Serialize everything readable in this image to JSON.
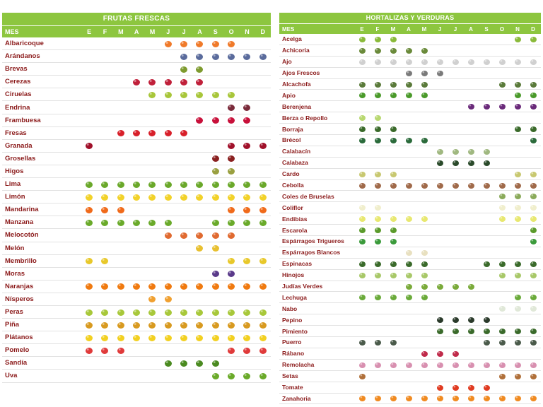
{
  "months": [
    "E",
    "F",
    "M",
    "A",
    "M",
    "J",
    "J",
    "A",
    "S",
    "O",
    "N",
    "D"
  ],
  "frutas": {
    "title": "FRUTAS FRESCAS",
    "mes_label": "MES",
    "items": [
      {
        "name": "Albaricoque",
        "icon": "apricot",
        "color": "#f07a2a",
        "months": [
          5,
          6,
          7,
          8,
          9
        ]
      },
      {
        "name": "Arándanos",
        "icon": "blueberry",
        "color": "#5a6b9c",
        "months": [
          6,
          7,
          8,
          9,
          10,
          11
        ]
      },
      {
        "name": "Brevas",
        "icon": "fig",
        "color": "#7e9b2e",
        "months": [
          6,
          7
        ]
      },
      {
        "name": "Cerezas",
        "icon": "cherry",
        "color": "#c0203a",
        "months": [
          3,
          4,
          5,
          6,
          7
        ]
      },
      {
        "name": "Ciruelas",
        "icon": "plum",
        "color": "#a8c63a",
        "months": [
          4,
          5,
          6,
          7,
          8,
          9
        ]
      },
      {
        "name": "Endrina",
        "icon": "sloe",
        "color": "#7a2a3a",
        "months": [
          9,
          10
        ]
      },
      {
        "name": "Frambuesa",
        "icon": "raspberry",
        "color": "#c8103a",
        "months": [
          7,
          8,
          9,
          10
        ]
      },
      {
        "name": "Fresas",
        "icon": "strawberry",
        "color": "#d8202a",
        "months": [
          2,
          3,
          4,
          5,
          6
        ]
      },
      {
        "name": "Granada",
        "icon": "pomegranate",
        "color": "#a0102a",
        "months": [
          0,
          9,
          10,
          11
        ]
      },
      {
        "name": "Grosellas",
        "icon": "currant",
        "color": "#8a2020",
        "months": [
          8,
          9
        ]
      },
      {
        "name": "Higos",
        "icon": "fig",
        "color": "#9aa040",
        "months": [
          8,
          9
        ]
      },
      {
        "name": "Lima",
        "icon": "lime",
        "color": "#6aa82a",
        "months": [
          0,
          1,
          2,
          3,
          4,
          5,
          6,
          7,
          8,
          9,
          10,
          11
        ]
      },
      {
        "name": "Limón",
        "icon": "lemon",
        "color": "#f2d22a",
        "months": [
          0,
          1,
          2,
          3,
          4,
          5,
          6,
          7,
          8,
          9,
          10,
          11
        ]
      },
      {
        "name": "Mandarina",
        "icon": "mandarin",
        "color": "#f06a1a",
        "months": [
          0,
          1,
          2,
          9,
          10,
          11
        ]
      },
      {
        "name": "Manzana",
        "icon": "apple",
        "color": "#6aaa2a",
        "months": [
          0,
          1,
          2,
          3,
          4,
          5,
          8,
          9,
          10,
          11
        ]
      },
      {
        "name": "Melocotón",
        "icon": "peach",
        "color": "#e06a30",
        "months": [
          5,
          6,
          7,
          8,
          9
        ]
      },
      {
        "name": "Melón",
        "icon": "melon",
        "color": "#e8c030",
        "months": [
          7,
          8
        ]
      },
      {
        "name": "Membrillo",
        "icon": "quince",
        "color": "#e8c82a",
        "months": [
          0,
          1,
          9,
          10,
          11
        ]
      },
      {
        "name": "Moras",
        "icon": "blackberry",
        "color": "#5a3a8a",
        "months": [
          8,
          9
        ]
      },
      {
        "name": "Naranjas",
        "icon": "orange",
        "color": "#f07a10",
        "months": [
          0,
          1,
          2,
          3,
          4,
          5,
          6,
          7,
          8,
          9,
          10,
          11
        ]
      },
      {
        "name": "Nísperos",
        "icon": "loquat",
        "color": "#f0a030",
        "months": [
          4,
          5
        ]
      },
      {
        "name": "Peras",
        "icon": "pear",
        "color": "#a8c83a",
        "months": [
          0,
          1,
          2,
          3,
          4,
          5,
          6,
          7,
          8,
          9,
          10,
          11
        ]
      },
      {
        "name": "Piña",
        "icon": "pineapple",
        "color": "#d89a20",
        "months": [
          0,
          1,
          2,
          3,
          4,
          5,
          6,
          7,
          8,
          9,
          10,
          11
        ]
      },
      {
        "name": "Plátanos",
        "icon": "banana",
        "color": "#f2d020",
        "months": [
          0,
          1,
          2,
          3,
          4,
          5,
          6,
          7,
          8,
          9,
          10,
          11
        ]
      },
      {
        "name": "Pomelo",
        "icon": "grapefruit",
        "color": "#e03a3a",
        "months": [
          0,
          1,
          2,
          9,
          10,
          11
        ]
      },
      {
        "name": "Sandía",
        "icon": "watermelon",
        "color": "#4a8a20",
        "months": [
          5,
          6,
          7,
          8
        ]
      },
      {
        "name": "Uva",
        "icon": "grape",
        "color": "#6aaa2a",
        "months": [
          8,
          9,
          10,
          11
        ]
      }
    ]
  },
  "hortalizas": {
    "title": "HORTALIZAS Y VERDURAS",
    "mes_label": "MES",
    "items": [
      {
        "name": "Acelga",
        "icon": "chard",
        "color": "#8aba3a",
        "months": [
          0,
          1,
          2,
          10,
          11
        ]
      },
      {
        "name": "Achicoria",
        "icon": "chicory",
        "color": "#6a8a3a",
        "months": [
          0,
          1,
          2,
          3,
          4
        ]
      },
      {
        "name": "Ajo",
        "icon": "garlic",
        "color": "#d0d0d0",
        "months": [
          0,
          1,
          2,
          3,
          4,
          5,
          6,
          7,
          8,
          9,
          10,
          11
        ]
      },
      {
        "name": "Ajos Frescos",
        "icon": "green-garlic",
        "color": "#7a7a7a",
        "months": [
          3,
          4,
          5
        ]
      },
      {
        "name": "Alcachofa",
        "icon": "artichoke",
        "color": "#5a7a3a",
        "months": [
          0,
          1,
          2,
          3,
          4,
          9,
          10,
          11
        ]
      },
      {
        "name": "Apio",
        "icon": "celery",
        "color": "#4a9a2a",
        "months": [
          0,
          1,
          2,
          3,
          4,
          10,
          11
        ]
      },
      {
        "name": "Berenjena",
        "icon": "eggplant",
        "color": "#6a2a7a",
        "months": [
          7,
          8,
          9,
          10,
          11
        ]
      },
      {
        "name": "Berza o Repollo",
        "icon": "cabbage",
        "color": "#b8d870",
        "months": [
          0,
          1
        ]
      },
      {
        "name": "Borraja",
        "icon": "borage",
        "color": "#3a6a2a",
        "months": [
          0,
          1,
          2,
          10,
          11
        ]
      },
      {
        "name": "Brécol",
        "icon": "broccoli",
        "color": "#2a6a3a",
        "months": [
          0,
          1,
          2,
          3,
          4,
          11
        ]
      },
      {
        "name": "Calabacín",
        "icon": "zucchini",
        "color": "#a0b880",
        "months": [
          5,
          6,
          7,
          8
        ]
      },
      {
        "name": "Calabaza",
        "icon": "pumpkin",
        "color": "#2a4a2a",
        "months": [
          5,
          6,
          7,
          8
        ]
      },
      {
        "name": "Cardo",
        "icon": "cardoon",
        "color": "#c8c870",
        "months": [
          0,
          1,
          2,
          10,
          11
        ]
      },
      {
        "name": "Cebolla",
        "icon": "onion",
        "color": "#a06a4a",
        "months": [
          0,
          1,
          2,
          3,
          4,
          5,
          6,
          7,
          8,
          9,
          10,
          11
        ]
      },
      {
        "name": "Coles de Bruselas",
        "icon": "brussels-sprout",
        "color": "#8aaa5a",
        "months": [
          9,
          10,
          11
        ]
      },
      {
        "name": "Coliflor",
        "icon": "cauliflower",
        "color": "#f0eecc",
        "months": [
          0,
          1,
          9,
          10,
          11
        ]
      },
      {
        "name": "Endibias",
        "icon": "endive",
        "color": "#e8e870",
        "months": [
          0,
          1,
          2,
          3,
          4,
          9,
          10,
          11
        ]
      },
      {
        "name": "Escarola",
        "icon": "escarole",
        "color": "#5a9a2a",
        "months": [
          0,
          1,
          2,
          11
        ]
      },
      {
        "name": "Espárragos Trigueros",
        "icon": "green-asparagus",
        "color": "#3a9a3a",
        "months": [
          0,
          1,
          2,
          11
        ]
      },
      {
        "name": "Espárragos Blancos",
        "icon": "white-asparagus",
        "color": "#e8e0c0",
        "months": [
          3,
          4
        ]
      },
      {
        "name": "Espinacas",
        "icon": "spinach",
        "color": "#3a6a2a",
        "months": [
          0,
          1,
          2,
          3,
          4,
          8,
          9,
          10,
          11
        ]
      },
      {
        "name": "Hinojos",
        "icon": "fennel",
        "color": "#a8c868",
        "months": [
          0,
          1,
          2,
          3,
          4,
          9,
          10,
          11
        ]
      },
      {
        "name": "Judías Verdes",
        "icon": "green-bean",
        "color": "#7aaa3a",
        "months": [
          3,
          4,
          5,
          6,
          7
        ]
      },
      {
        "name": "Lechuga",
        "icon": "lettuce",
        "color": "#6aaa3a",
        "months": [
          0,
          1,
          2,
          3,
          4,
          10,
          11
        ]
      },
      {
        "name": "Nabo",
        "icon": "turnip",
        "color": "#e0e8d8",
        "months": [
          9,
          10,
          11
        ]
      },
      {
        "name": "Pepino",
        "icon": "cucumber",
        "color": "#2a3a2a",
        "months": [
          5,
          6,
          7,
          8
        ]
      },
      {
        "name": "Pimiento",
        "icon": "pepper",
        "color": "#3a6a2a",
        "months": [
          5,
          6,
          7,
          8,
          9,
          10,
          11
        ]
      },
      {
        "name": "Puerro",
        "icon": "leek",
        "color": "#4a5a4a",
        "months": [
          0,
          1,
          2,
          8,
          9,
          10,
          11
        ]
      },
      {
        "name": "Rábano",
        "icon": "radish",
        "color": "#c02a4a",
        "months": [
          4,
          5,
          6
        ]
      },
      {
        "name": "Remolacha",
        "icon": "beetroot",
        "color": "#d890b0",
        "months": [
          0,
          1,
          2,
          3,
          4,
          5,
          6,
          7,
          8,
          9,
          10,
          11
        ]
      },
      {
        "name": "Setas",
        "icon": "mushroom",
        "color": "#b0703a",
        "months": [
          0,
          9,
          10,
          11
        ]
      },
      {
        "name": "Tomate",
        "icon": "tomato",
        "color": "#e03a20",
        "months": [
          5,
          6,
          7,
          8
        ]
      },
      {
        "name": "Zanahoria",
        "icon": "carrot",
        "color": "#f08a20",
        "months": [
          0,
          1,
          2,
          3,
          4,
          5,
          6,
          7,
          8,
          9,
          10,
          11
        ]
      }
    ]
  }
}
